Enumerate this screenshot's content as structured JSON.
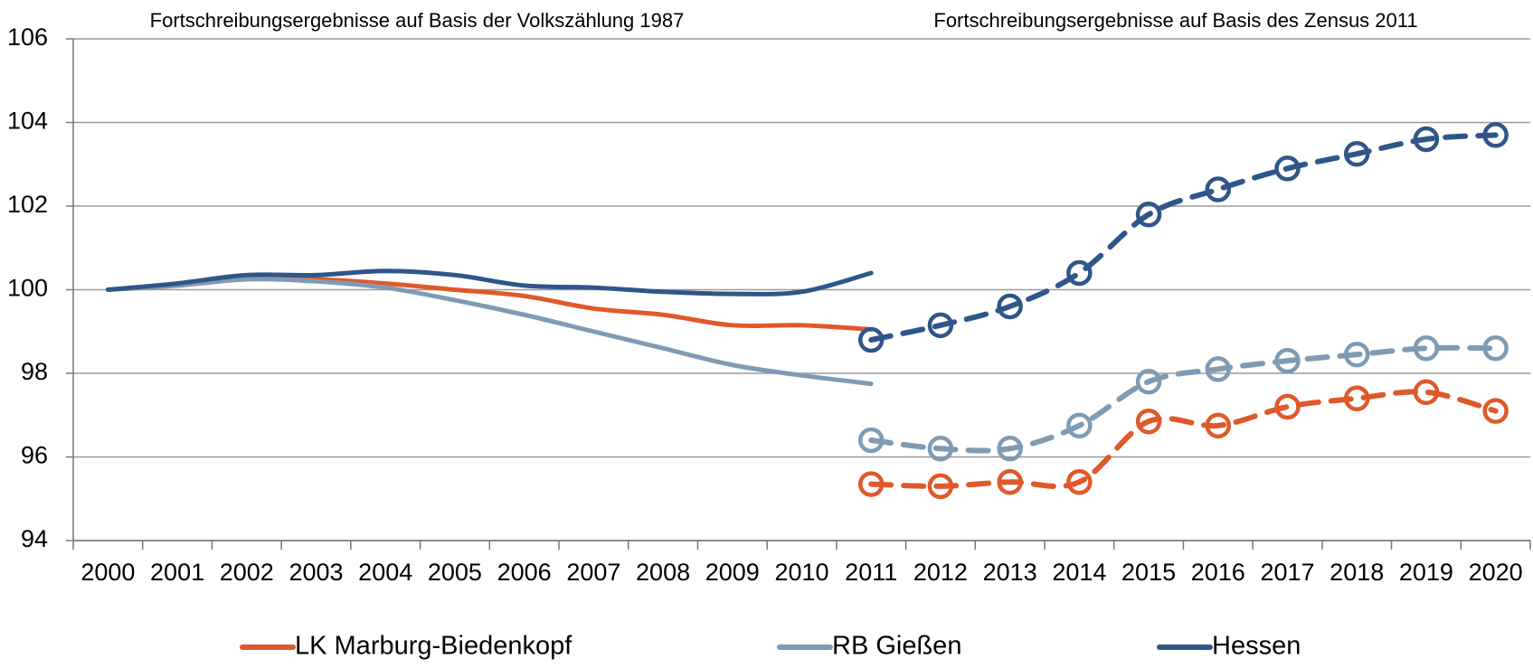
{
  "chart_data": {
    "type": "line",
    "annotations": [
      "Fortschreibungsergebnisse auf Basis der Volkszählung 1987",
      "Fortschreibungsergebnisse auf Basis des Zensus 2011"
    ],
    "categories": [
      "2000",
      "2001",
      "2002",
      "2003",
      "2004",
      "2005",
      "2006",
      "2007",
      "2008",
      "2009",
      "2010",
      "2011",
      "2012",
      "2013",
      "2014",
      "2015",
      "2016",
      "2017",
      "2018",
      "2019",
      "2020"
    ],
    "ylim": [
      94,
      106
    ],
    "yticks": [
      94,
      96,
      98,
      100,
      102,
      104,
      106
    ],
    "grid": true,
    "series": [
      {
        "name": "LK Marburg-Biedenkopf",
        "color": "#e0592a",
        "values": [
          100,
          100.1,
          100.25,
          100.25,
          100.15,
          100.0,
          99.85,
          99.55,
          99.4,
          99.15,
          99.15,
          99.05,
          null,
          null,
          null,
          null,
          null,
          null,
          null,
          null,
          null
        ],
        "values_zensus": [
          null,
          null,
          null,
          null,
          null,
          null,
          null,
          null,
          null,
          null,
          null,
          95.35,
          95.3,
          95.4,
          95.4,
          96.85,
          96.75,
          97.2,
          97.4,
          97.55,
          97.1
        ]
      },
      {
        "name": "RB Gießen",
        "color": "#7f9bb3",
        "values": [
          100,
          100.1,
          100.25,
          100.2,
          100.05,
          99.75,
          99.4,
          99.0,
          98.6,
          98.2,
          97.95,
          97.75,
          null,
          null,
          null,
          null,
          null,
          null,
          null,
          null,
          null
        ],
        "values_zensus": [
          null,
          null,
          null,
          null,
          null,
          null,
          null,
          null,
          null,
          null,
          null,
          96.4,
          96.2,
          96.2,
          96.75,
          97.8,
          98.1,
          98.3,
          98.45,
          98.6,
          98.6
        ]
      },
      {
        "name": "Hessen",
        "color": "#2f5689",
        "values": [
          100,
          100.15,
          100.35,
          100.35,
          100.45,
          100.35,
          100.1,
          100.05,
          99.95,
          99.9,
          99.95,
          100.4,
          null,
          null,
          null,
          null,
          null,
          null,
          null,
          null,
          null
        ],
        "values_zensus": [
          null,
          null,
          null,
          null,
          null,
          null,
          null,
          null,
          null,
          null,
          null,
          98.8,
          99.15,
          99.6,
          100.4,
          101.8,
          102.4,
          102.9,
          103.25,
          103.6,
          103.7
        ]
      }
    ]
  }
}
